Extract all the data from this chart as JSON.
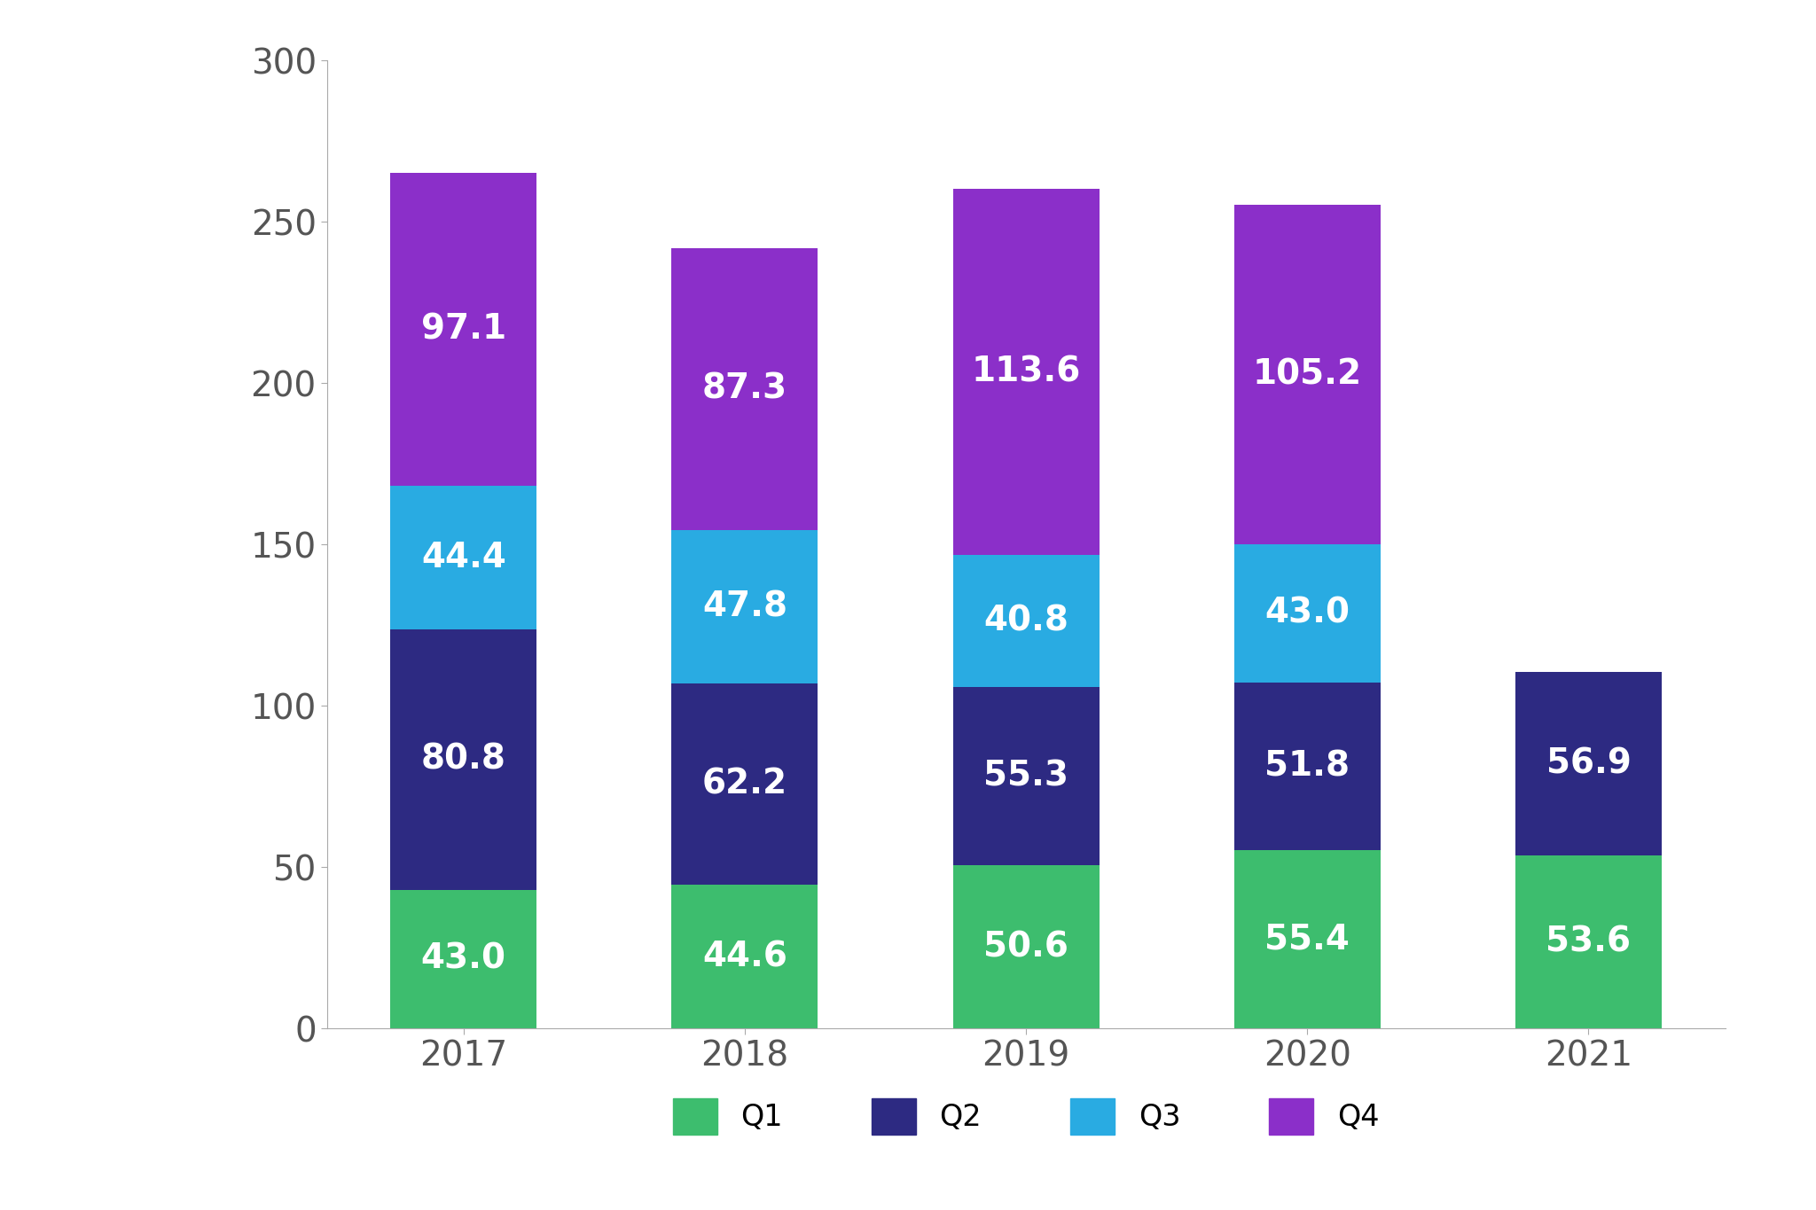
{
  "years": [
    "2017",
    "2018",
    "2019",
    "2020",
    "2021"
  ],
  "Q1": [
    43.0,
    44.6,
    50.6,
    55.4,
    53.6
  ],
  "Q2": [
    80.8,
    62.2,
    55.3,
    51.8,
    56.9
  ],
  "Q3": [
    44.4,
    47.8,
    40.8,
    43.0,
    0.0
  ],
  "Q4": [
    97.1,
    87.3,
    113.6,
    105.2,
    0.0
  ],
  "colors": {
    "Q1": "#3DBD6E",
    "Q2": "#2D2A82",
    "Q3": "#29ABE2",
    "Q4": "#8B2FC9"
  },
  "ylim": [
    0,
    300
  ],
  "yticks": [
    0,
    50,
    100,
    150,
    200,
    250,
    300
  ],
  "bar_width": 0.52,
  "label_fontsize": 28,
  "tick_fontsize": 28,
  "legend_fontsize": 24,
  "background_color": "#FFFFFF",
  "text_color": "#FFFFFF",
  "axis_color": "#AAAAAA"
}
